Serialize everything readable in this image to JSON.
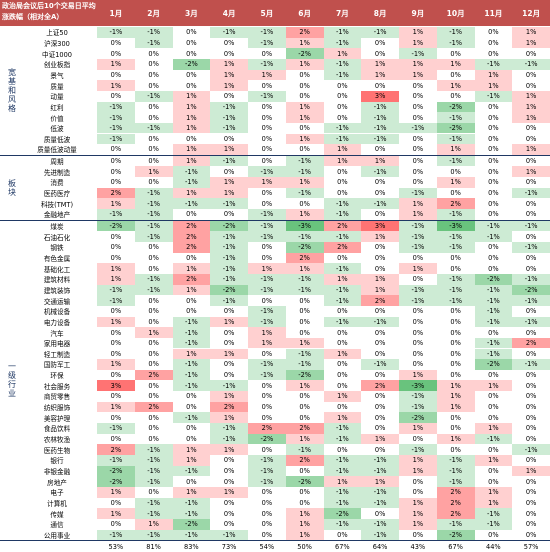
{
  "header": {
    "title": "政治局会议后10个交易日平均涨跌幅（相对全A）",
    "months": [
      "1月",
      "2月",
      "3月",
      "4月",
      "5月",
      "6月",
      "7月",
      "8月",
      "9月",
      "10月",
      "11月",
      "12月"
    ]
  },
  "categories": [
    "宽基和风格",
    "板块",
    "一级行业"
  ],
  "groups": [
    {
      "category": "宽基和风格",
      "rows": [
        {
          "label": "上证50",
          "values": [
            -1,
            -1,
            0,
            -1,
            -1,
            2,
            -1,
            -1,
            1,
            -1,
            0,
            1
          ]
        },
        {
          "label": "沪深300",
          "values": [
            0,
            -1,
            0,
            0,
            -1,
            1,
            -1,
            0,
            1,
            -1,
            0,
            1
          ]
        },
        {
          "label": "中证1000",
          "values": [
            0,
            0,
            0,
            0,
            0,
            -2,
            1,
            0,
            -1,
            0,
            0,
            0
          ]
        },
        {
          "label": "创业板指",
          "values": [
            1,
            0,
            -2,
            1,
            -1,
            1,
            -1,
            1,
            1,
            1,
            -1,
            -1
          ]
        },
        {
          "label": "景气",
          "values": [
            0,
            0,
            0,
            1,
            1,
            0,
            -1,
            1,
            1,
            0,
            1,
            0
          ]
        },
        {
          "label": "质量",
          "values": [
            1,
            0,
            0,
            1,
            0,
            0,
            0,
            0,
            0,
            1,
            1,
            0
          ]
        },
        {
          "label": "动量",
          "values": [
            0,
            -1,
            1,
            0,
            -1,
            0,
            0,
            3,
            0,
            0,
            -1,
            1
          ]
        },
        {
          "label": "红利",
          "values": [
            -1,
            0,
            1,
            -1,
            0,
            1,
            0,
            -1,
            0,
            -2,
            0,
            1
          ]
        },
        {
          "label": "价值",
          "values": [
            -1,
            0,
            1,
            -1,
            0,
            1,
            0,
            -1,
            0,
            -1,
            0,
            1
          ]
        },
        {
          "label": "低波",
          "values": [
            -1,
            -1,
            1,
            -1,
            0,
            0,
            -1,
            -1,
            -1,
            -2,
            0,
            0
          ]
        },
        {
          "label": "质量低波",
          "values": [
            -1,
            0,
            0,
            0,
            0,
            1,
            -1,
            -1,
            0,
            -1,
            0,
            0
          ]
        },
        {
          "label": "质量低波动量",
          "values": [
            0,
            0,
            1,
            1,
            0,
            0,
            1,
            0,
            0,
            1,
            0,
            1
          ]
        }
      ]
    },
    {
      "category": "板块",
      "rows": [
        {
          "label": "周期",
          "values": [
            0,
            0,
            1,
            -1,
            0,
            -1,
            1,
            1,
            0,
            -1,
            0,
            0
          ]
        },
        {
          "label": "先进制造",
          "values": [
            0,
            1,
            -1,
            0,
            -1,
            -1,
            0,
            -1,
            0,
            0,
            0,
            1
          ]
        },
        {
          "label": "消费",
          "values": [
            0,
            0,
            -1,
            1,
            1,
            1,
            0,
            0,
            0,
            1,
            0,
            0
          ]
        },
        {
          "label": "医药医疗",
          "values": [
            2,
            -1,
            1,
            1,
            0,
            -1,
            0,
            0,
            -1,
            0,
            0,
            -1
          ]
        },
        {
          "label": "科技(TMT)",
          "values": [
            1,
            -1,
            -1,
            -1,
            0,
            0,
            -1,
            -1,
            1,
            2,
            0,
            0
          ]
        },
        {
          "label": "金融地产",
          "values": [
            -1,
            -1,
            0,
            0,
            -1,
            1,
            -1,
            0,
            1,
            -1,
            0,
            0
          ]
        }
      ]
    },
    {
      "category": "一级行业",
      "rows": [
        {
          "label": "煤炭",
          "values": [
            -2,
            -1,
            2,
            -2,
            -1,
            -3,
            2,
            3,
            -1,
            -3,
            -1,
            -1
          ]
        },
        {
          "label": "石油石化",
          "values": [
            0,
            -1,
            2,
            -1,
            -1,
            -1,
            -1,
            1,
            -1,
            -1,
            -1,
            0
          ]
        },
        {
          "label": "钢铁",
          "values": [
            0,
            0,
            2,
            -1,
            0,
            -2,
            2,
            0,
            -1,
            -1,
            0,
            -1
          ]
        },
        {
          "label": "有色金属",
          "values": [
            0,
            0,
            0,
            -1,
            0,
            2,
            0,
            0,
            0,
            0,
            0,
            0
          ]
        },
        {
          "label": "基础化工",
          "values": [
            1,
            0,
            1,
            -1,
            1,
            1,
            -1,
            0,
            1,
            0,
            0,
            0
          ]
        },
        {
          "label": "建筑材料",
          "values": [
            1,
            -1,
            2,
            -1,
            -1,
            -1,
            1,
            1,
            0,
            -1,
            -2,
            -1
          ]
        },
        {
          "label": "建筑装饰",
          "values": [
            -1,
            -1,
            1,
            -2,
            -1,
            -1,
            -1,
            1,
            -1,
            -1,
            -1,
            -2
          ]
        },
        {
          "label": "交通运输",
          "values": [
            -1,
            0,
            0,
            -1,
            0,
            0,
            -1,
            2,
            -1,
            -1,
            -1,
            -1
          ]
        },
        {
          "label": "机械设备",
          "values": [
            0,
            0,
            0,
            0,
            -1,
            0,
            0,
            0,
            0,
            0,
            -1,
            0
          ]
        },
        {
          "label": "电力设备",
          "values": [
            1,
            0,
            -1,
            1,
            -1,
            0,
            -1,
            -1,
            0,
            0,
            -1,
            -1
          ]
        },
        {
          "label": "汽车",
          "values": [
            0,
            1,
            -1,
            0,
            1,
            0,
            0,
            0,
            0,
            0,
            0,
            0
          ]
        },
        {
          "label": "家用电器",
          "values": [
            0,
            0,
            -1,
            0,
            1,
            1,
            0,
            0,
            0,
            0,
            -1,
            2
          ]
        },
        {
          "label": "轻工制造",
          "values": [
            0,
            0,
            1,
            1,
            0,
            -1,
            1,
            0,
            0,
            0,
            -1,
            0
          ]
        },
        {
          "label": "国防军工",
          "values": [
            1,
            0,
            -1,
            0,
            -1,
            -1,
            0,
            -1,
            0,
            0,
            -2,
            -1
          ]
        },
        {
          "label": "环保",
          "values": [
            0,
            2,
            -1,
            0,
            -1,
            -2,
            0,
            0,
            1,
            0,
            0,
            0
          ]
        },
        {
          "label": "社会服务",
          "values": [
            3,
            0,
            -1,
            -1,
            0,
            1,
            0,
            2,
            -3,
            1,
            1,
            0
          ]
        },
        {
          "label": "商贸零售",
          "values": [
            0,
            0,
            0,
            1,
            0,
            0,
            1,
            0,
            -1,
            1,
            0,
            0
          ]
        },
        {
          "label": "纺织服饰",
          "values": [
            1,
            2,
            0,
            2,
            0,
            0,
            0,
            0,
            -1,
            1,
            0,
            0
          ]
        },
        {
          "label": "美容护理",
          "values": [
            0,
            0,
            -1,
            1,
            0,
            0,
            1,
            0,
            -2,
            0,
            0,
            0
          ]
        },
        {
          "label": "食品饮料",
          "values": [
            -1,
            0,
            0,
            -1,
            2,
            2,
            -1,
            0,
            1,
            0,
            1,
            0
          ]
        },
        {
          "label": "农林牧渔",
          "values": [
            0,
            0,
            0,
            -1,
            -2,
            1,
            -1,
            1,
            0,
            1,
            -1,
            0
          ]
        },
        {
          "label": "医药生物",
          "values": [
            2,
            -1,
            1,
            1,
            0,
            -1,
            0,
            0,
            -1,
            0,
            0,
            -1
          ]
        },
        {
          "label": "银行",
          "values": [
            -1,
            -1,
            1,
            0,
            -1,
            2,
            -1,
            -1,
            1,
            -1,
            1,
            0
          ]
        },
        {
          "label": "非银金融",
          "values": [
            -2,
            -1,
            -1,
            0,
            -1,
            0,
            -1,
            -1,
            1,
            -1,
            0,
            1
          ]
        },
        {
          "label": "房地产",
          "values": [
            -2,
            -1,
            0,
            0,
            -1,
            -2,
            1,
            1,
            0,
            -1,
            0,
            0
          ]
        },
        {
          "label": "电子",
          "values": [
            1,
            0,
            1,
            1,
            0,
            0,
            -1,
            -1,
            0,
            2,
            1,
            0
          ]
        },
        {
          "label": "计算机",
          "values": [
            0,
            -1,
            -1,
            0,
            0,
            0,
            -1,
            -1,
            1,
            2,
            1,
            0
          ]
        },
        {
          "label": "传媒",
          "values": [
            1,
            -1,
            -1,
            0,
            0,
            1,
            -2,
            0,
            1,
            2,
            -1,
            0
          ]
        },
        {
          "label": "通信",
          "values": [
            0,
            1,
            -2,
            0,
            0,
            1,
            -1,
            -1,
            1,
            -1,
            -1,
            0
          ]
        },
        {
          "label": "公用事业",
          "values": [
            -1,
            -1,
            -1,
            -1,
            0,
            1,
            0,
            -1,
            0,
            -2,
            0,
            0
          ]
        }
      ]
    }
  ],
  "footer": {
    "label": "",
    "values": [
      "53%",
      "81%",
      "83%",
      "73%",
      "54%",
      "50%",
      "67%",
      "64%",
      "43%",
      "67%",
      "44%",
      "57%"
    ]
  },
  "colors": {
    "header_bg": "#c0504d",
    "positive": "#e06666",
    "negative": "#57bb8a",
    "separator": "#1f3864"
  }
}
